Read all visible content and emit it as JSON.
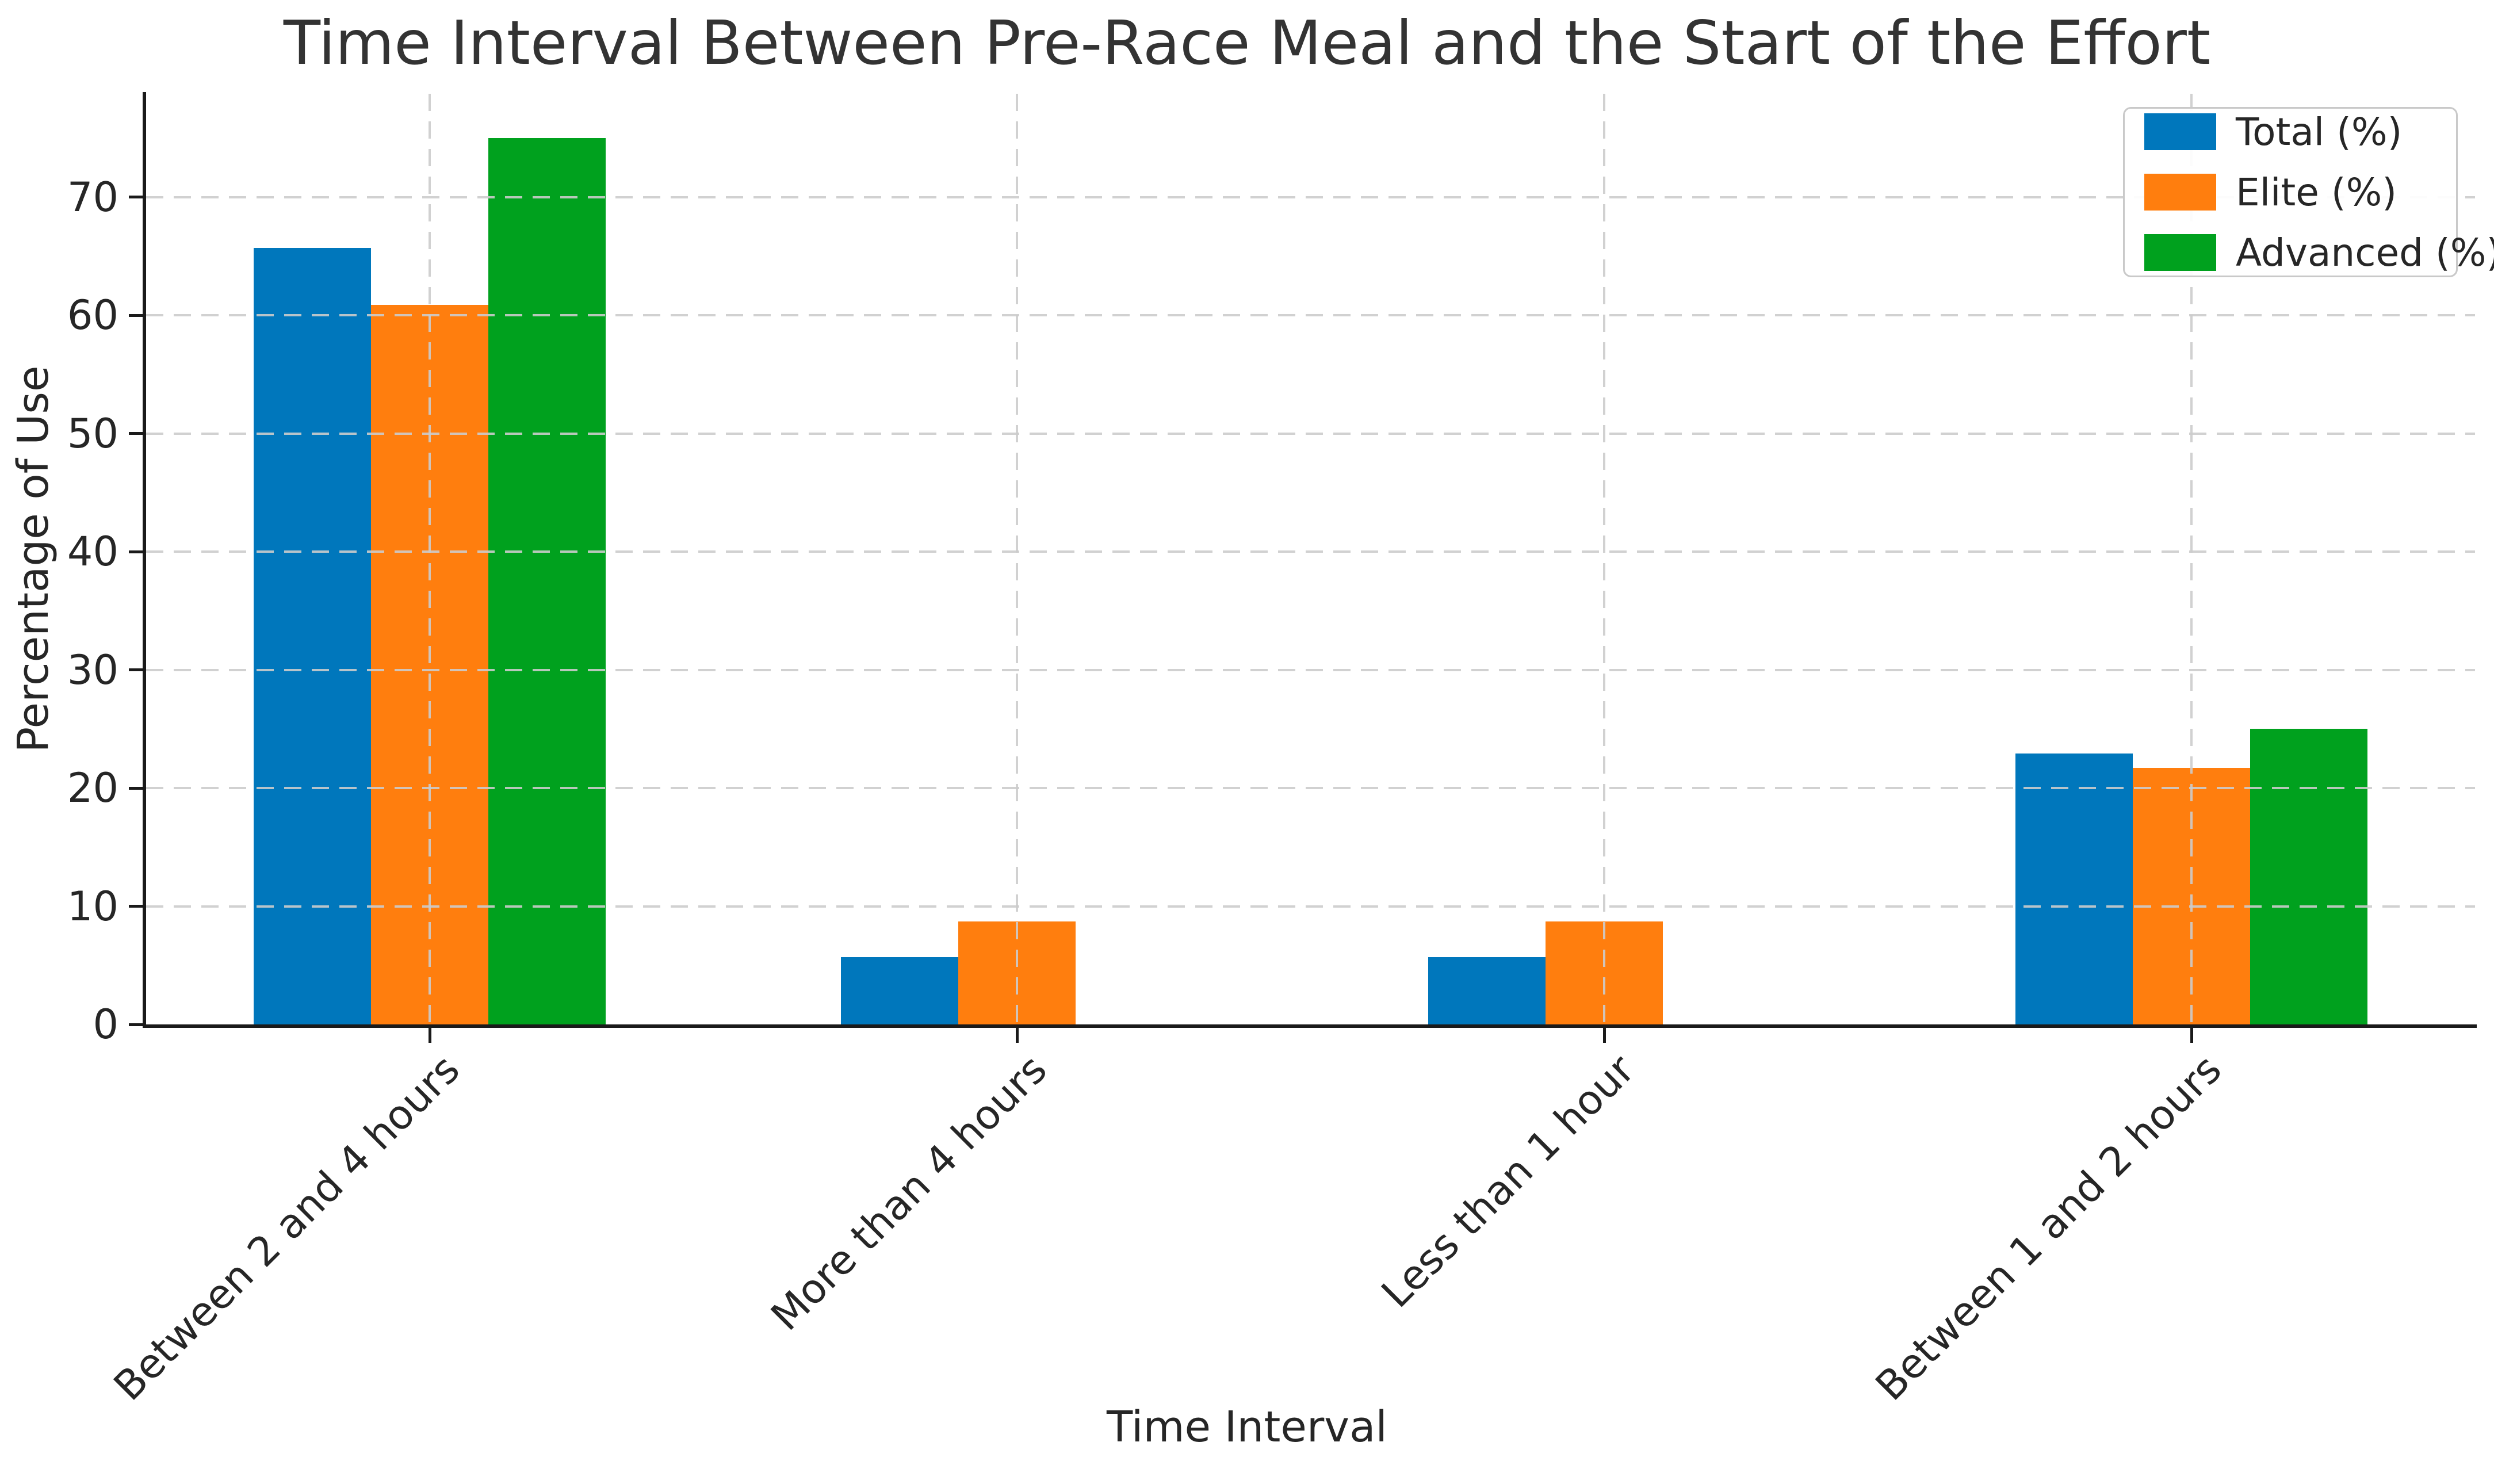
{
  "chart_data": {
    "type": "bar",
    "title": "Time Interval Between Pre-Race Meal and the Start of the Effort",
    "xlabel": "Time Interval",
    "ylabel": "Percentage of Use",
    "categories": [
      "Between 2 and 4 hours",
      "More than 4 hours",
      "Less than 1 hour",
      "Between 1 and 2 hours"
    ],
    "series": [
      {
        "name": "Total (%)",
        "color": "#0077bc",
        "values": [
          65.7,
          5.7,
          5.7,
          22.9
        ]
      },
      {
        "name": "Elite (%)",
        "color": "#ff7e0e",
        "values": [
          60.9,
          8.7,
          8.7,
          21.7
        ]
      },
      {
        "name": "Advanced (%)",
        "color": "#00a11e",
        "values": [
          75.0,
          0.0,
          0.0,
          25.0
        ]
      }
    ],
    "ylim": [
      0,
      78.75
    ],
    "yticks": [
      0,
      10,
      20,
      30,
      40,
      50,
      60,
      70
    ],
    "grid": true,
    "grid_style": "dashed",
    "legend_position": "upper right",
    "background": "#ffffff"
  }
}
